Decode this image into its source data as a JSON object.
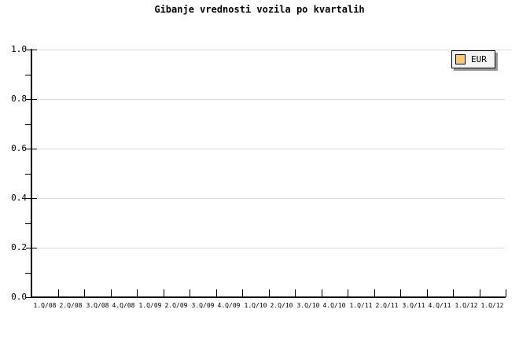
{
  "chart_data": {
    "type": "line",
    "title": "Gibanje vrednosti vozila po kvartalih",
    "x_tick_labels": [
      "1.Q/08",
      "2.Q/08",
      "3.Q/08",
      "4.Q/08",
      "1.Q/09",
      "2.Q/09",
      "3.Q/09",
      "4.Q/09",
      "1.Q/10",
      "2.Q/10",
      "3.Q/10",
      "4.Q/10",
      "1.Q/11",
      "2.Q/11",
      "3.Q/11",
      "4.Q/11",
      "1.Q/12",
      "1.Q/12"
    ],
    "y_tick_labels": [
      "1.0",
      "0.8",
      "0.6",
      "0.4",
      "0.2",
      "0.0"
    ],
    "ylim": [
      0.0,
      1.0
    ],
    "y_major_step": 0.2,
    "y_minor_step": 0.1,
    "grid": "horizontal",
    "grid_color": "#DCDCDC",
    "axis_color": "#000000",
    "background_color": "#FFFFFF",
    "series": [
      {
        "name": "EUR",
        "color": "#FCC870",
        "values": []
      }
    ],
    "legend": {
      "position": "top-right",
      "entries": [
        {
          "label": "EUR",
          "swatch_color": "#FCC870"
        }
      ],
      "background": "#F4F4F4",
      "border_color": "#000000",
      "shadow_color": "#999999"
    }
  }
}
